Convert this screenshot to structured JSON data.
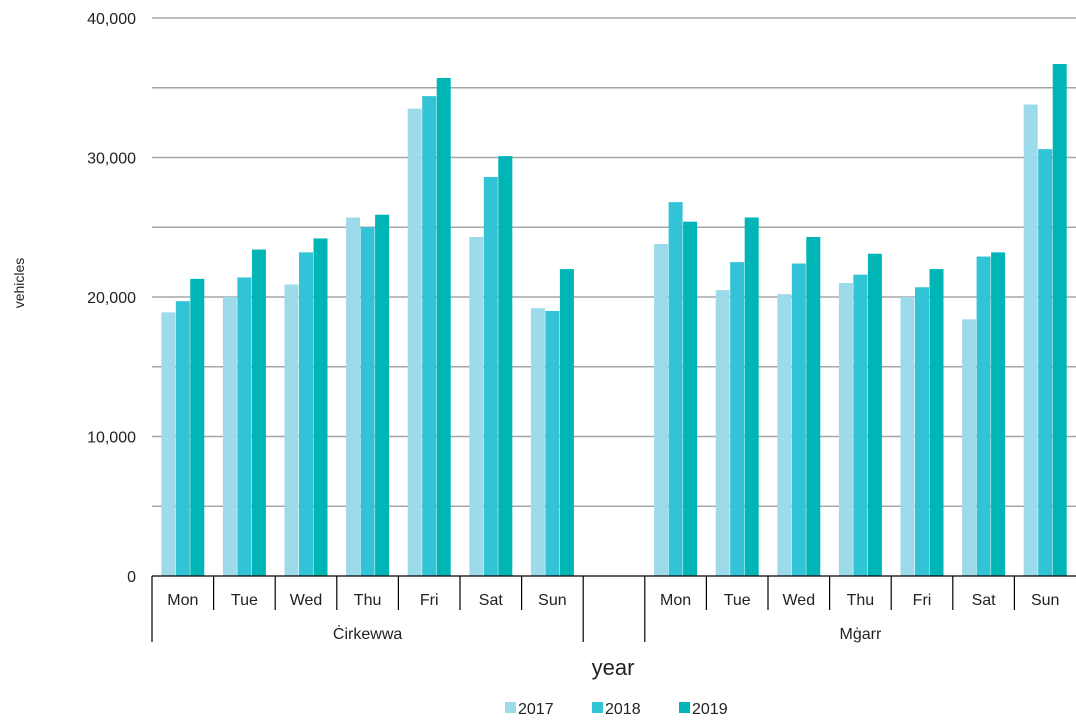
{
  "chart_data": {
    "type": "bar",
    "ylabel": "vehicles",
    "xlabel": "year",
    "ylim": [
      0,
      40000
    ],
    "yticks": [
      0,
      10000,
      20000,
      30000,
      40000
    ],
    "ytick_labels": [
      "0",
      "10,000",
      "20,000",
      "30,000",
      "40,000"
    ],
    "grid": true,
    "legend_position": "bottom",
    "groups": [
      {
        "name": "Ċirkewwa",
        "categories": [
          "Mon",
          "Tue",
          "Wed",
          "Thu",
          "Fri",
          "Sat",
          "Sun"
        ]
      },
      {
        "name": "Mġarr",
        "categories": [
          "Mon",
          "Tue",
          "Wed",
          "Thu",
          "Fri",
          "Sat",
          "Sun"
        ]
      }
    ],
    "series": [
      {
        "name": "2017",
        "color": "#9edbea",
        "values": [
          18900,
          20000,
          20900,
          25700,
          33500,
          24300,
          19200,
          23800,
          20500,
          20200,
          21000,
          20000,
          18400,
          33800
        ]
      },
      {
        "name": "2018",
        "color": "#33c3d6",
        "values": [
          19700,
          21400,
          23200,
          25000,
          34400,
          28600,
          19000,
          26800,
          22500,
          22400,
          21600,
          20700,
          22900,
          30600
        ]
      },
      {
        "name": "2019",
        "color": "#00b5b5",
        "values": [
          21300,
          23400,
          24200,
          25900,
          35700,
          30100,
          22000,
          25400,
          25700,
          24300,
          23100,
          22000,
          23200,
          36700
        ]
      }
    ]
  }
}
